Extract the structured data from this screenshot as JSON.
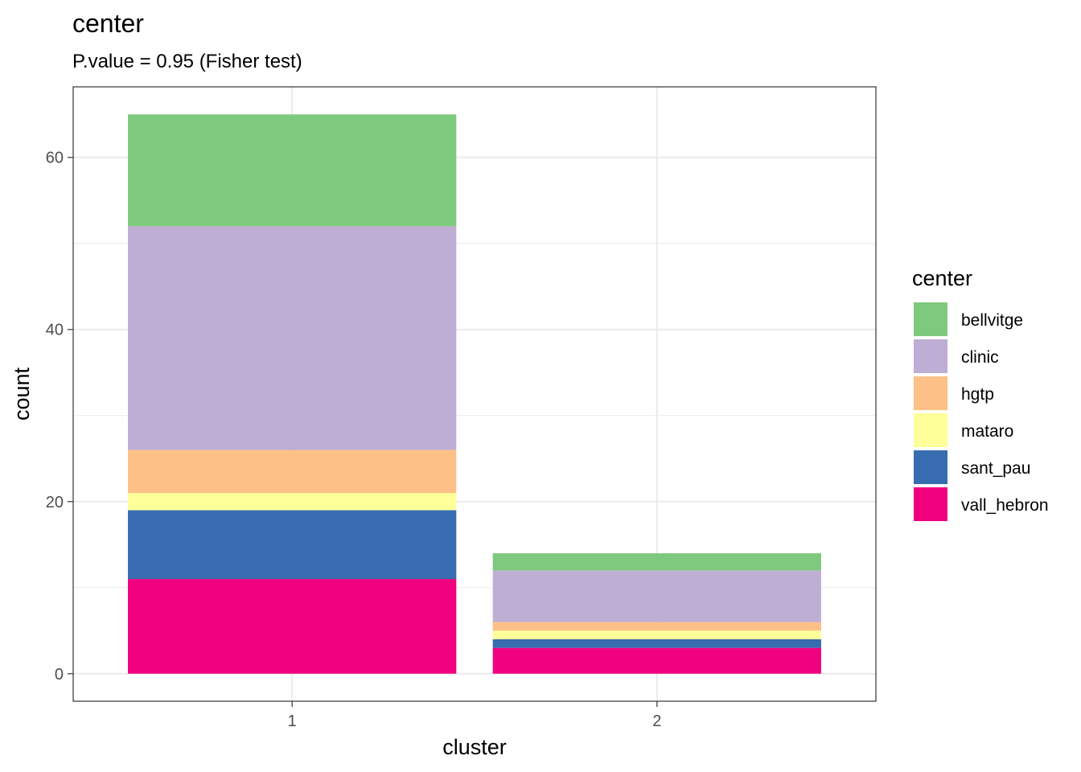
{
  "chart_data": {
    "type": "bar",
    "stacked": true,
    "title": "center",
    "subtitle": "P.value = 0.95 (Fisher test)",
    "xlabel": "cluster",
    "ylabel": "count",
    "categories": [
      "1",
      "2"
    ],
    "ylim": [
      -3.2,
      68.2
    ],
    "yticks": [
      0,
      20,
      40,
      60
    ],
    "grid": true,
    "legend": {
      "title": "center",
      "position": "right"
    },
    "series": [
      {
        "name": "bellvitge",
        "color": "#7FC97F",
        "values": [
          13,
          2
        ]
      },
      {
        "name": "clinic",
        "color": "#BEAED4",
        "values": [
          26,
          6
        ]
      },
      {
        "name": "hgtp",
        "color": "#FDC086",
        "values": [
          5,
          1
        ]
      },
      {
        "name": "mataro",
        "color": "#FFFF99",
        "values": [
          2,
          1
        ]
      },
      {
        "name": "sant_pau",
        "color": "#386CB0",
        "values": [
          8,
          1
        ]
      },
      {
        "name": "vall_hebron",
        "color": "#F0027F",
        "values": [
          11,
          3
        ]
      }
    ]
  }
}
